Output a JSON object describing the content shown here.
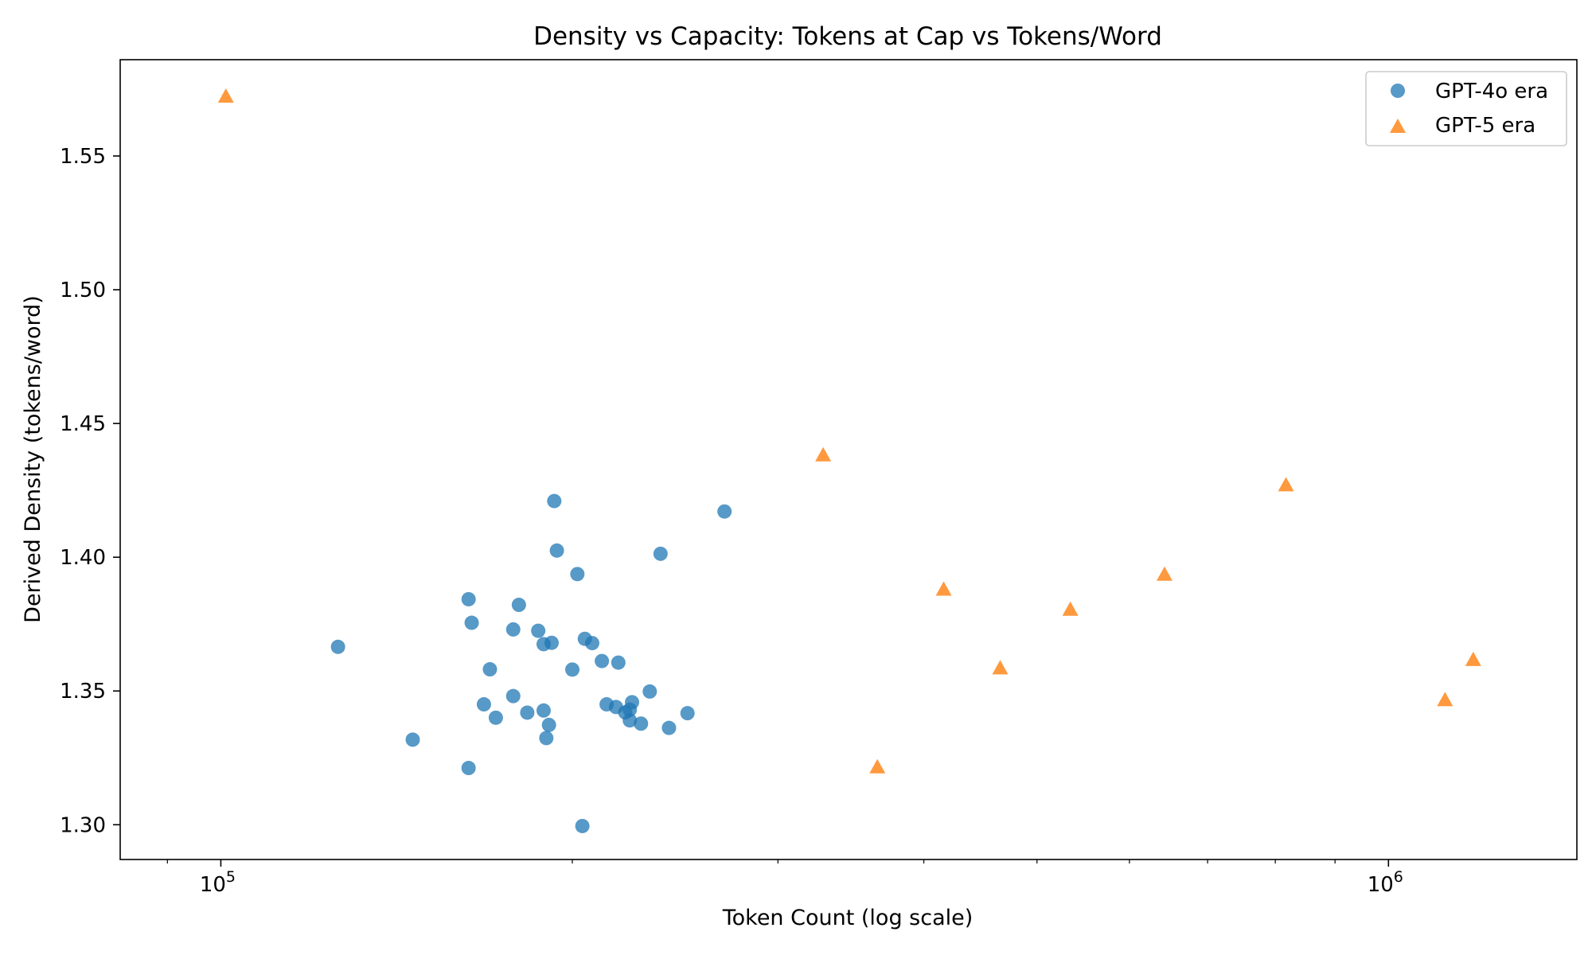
{
  "chart_data": {
    "type": "scatter",
    "title": "Density vs Capacity: Tokens at Cap vs Tokens/Word",
    "xlabel": "Token Count (log scale)",
    "ylabel": "Derived Density (tokens/word)",
    "xscale": "log",
    "xlim": [
      82000,
      1450000
    ],
    "ylim": [
      1.287,
      1.586
    ],
    "x_ticks": [
      {
        "value": 100000,
        "base": "10",
        "exp": "5"
      },
      {
        "value": 1000000,
        "base": "10",
        "exp": "6"
      }
    ],
    "y_ticks": [
      {
        "value": 1.3,
        "label": "1.30"
      },
      {
        "value": 1.35,
        "label": "1.35"
      },
      {
        "value": 1.4,
        "label": "1.40"
      },
      {
        "value": 1.45,
        "label": "1.45"
      },
      {
        "value": 1.5,
        "label": "1.50"
      },
      {
        "value": 1.55,
        "label": "1.55"
      }
    ],
    "grid": false,
    "legend_position": "top-right",
    "series": [
      {
        "name": "GPT-4o era",
        "marker": "circle",
        "color": "#1f77b4",
        "points": [
          [
            126000,
            1.3665
          ],
          [
            146000,
            1.3318
          ],
          [
            163000,
            1.3843
          ],
          [
            164000,
            1.3755
          ],
          [
            163000,
            1.3212
          ],
          [
            168000,
            1.345
          ],
          [
            170000,
            1.3581
          ],
          [
            172000,
            1.34
          ],
          [
            178000,
            1.3481
          ],
          [
            178000,
            1.373
          ],
          [
            180000,
            1.3822
          ],
          [
            183000,
            1.3419
          ],
          [
            187000,
            1.3725
          ],
          [
            189000,
            1.3427
          ],
          [
            189000,
            1.3675
          ],
          [
            190000,
            1.3324
          ],
          [
            191000,
            1.3373
          ],
          [
            192000,
            1.368
          ],
          [
            193000,
            1.421
          ],
          [
            194000,
            1.4025
          ],
          [
            200000,
            1.358
          ],
          [
            202000,
            1.3937
          ],
          [
            204000,
            1.2995
          ],
          [
            205000,
            1.3695
          ],
          [
            208000,
            1.3679
          ],
          [
            212000,
            1.3612
          ],
          [
            214000,
            1.345
          ],
          [
            218000,
            1.344
          ],
          [
            219000,
            1.3606
          ],
          [
            222000,
            1.342
          ],
          [
            224000,
            1.343
          ],
          [
            224000,
            1.339
          ],
          [
            225000,
            1.3458
          ],
          [
            229000,
            1.3378
          ],
          [
            233000,
            1.3498
          ],
          [
            238000,
            1.4013
          ],
          [
            242000,
            1.3362
          ],
          [
            251000,
            1.3417
          ],
          [
            270000,
            1.4171
          ]
        ]
      },
      {
        "name": "GPT-5 era",
        "marker": "triangle",
        "color": "#ff7f0e",
        "points": [
          [
            101000,
            1.5723
          ],
          [
            328000,
            1.4382
          ],
          [
            365000,
            1.3216
          ],
          [
            416000,
            1.388
          ],
          [
            465000,
            1.3586
          ],
          [
            534000,
            1.3805
          ],
          [
            643000,
            1.3936
          ],
          [
            817000,
            1.427
          ],
          [
            1118000,
            1.3467
          ],
          [
            1182000,
            1.3617
          ]
        ]
      }
    ]
  }
}
